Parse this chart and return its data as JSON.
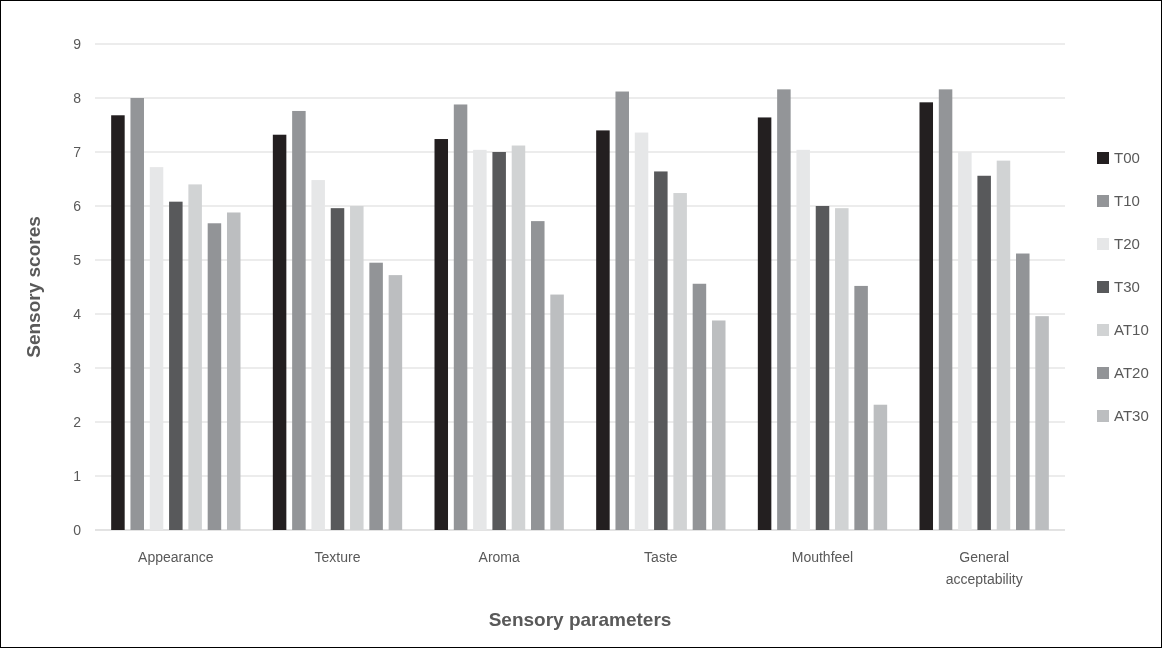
{
  "chart_data": {
    "type": "bar",
    "xlabel": "Sensory parameters",
    "ylabel": "Sensory scores",
    "categories": [
      "Appearance",
      "Texture",
      "Aroma",
      "Taste",
      "Mouthfeel",
      "General acceptability"
    ],
    "series": [
      {
        "name": "T00",
        "color": "#231f20",
        "values": [
          7.68,
          7.32,
          7.24,
          7.4,
          7.64,
          7.92
        ]
      },
      {
        "name": "T10",
        "color": "#939598",
        "values": [
          8.0,
          7.76,
          7.88,
          8.12,
          8.16,
          8.16
        ]
      },
      {
        "name": "T20",
        "color": "#e6e7e8",
        "values": [
          6.72,
          6.48,
          7.04,
          7.36,
          7.04,
          7.0
        ]
      },
      {
        "name": "T30",
        "color": "#58595b",
        "values": [
          6.08,
          5.96,
          7.0,
          6.64,
          6.0,
          6.56
        ]
      },
      {
        "name": "AT10",
        "color": "#d1d3d4",
        "values": [
          6.4,
          6.0,
          7.12,
          6.24,
          5.96,
          6.84
        ]
      },
      {
        "name": "AT20",
        "color": "#929497",
        "values": [
          5.68,
          4.95,
          5.72,
          4.56,
          4.52,
          5.12
        ]
      },
      {
        "name": "AT30",
        "color": "#bcbec0",
        "values": [
          5.88,
          4.72,
          4.36,
          3.88,
          2.32,
          3.96
        ]
      }
    ],
    "ylim": [
      0,
      9
    ],
    "yticks": [
      0,
      1,
      2,
      3,
      4,
      5,
      6,
      7,
      8,
      9
    ],
    "grid": "y",
    "legend": "right"
  }
}
